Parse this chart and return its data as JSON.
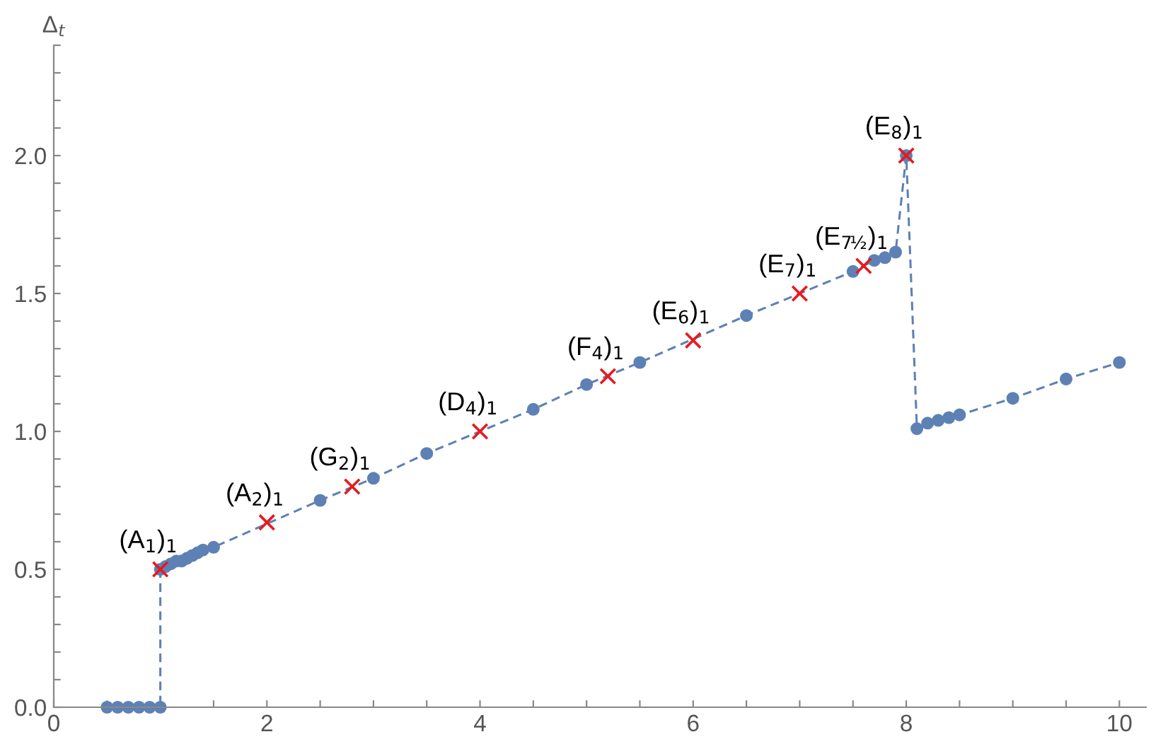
{
  "chart_data": {
    "type": "line",
    "ylabel": "Δ$_{t}$",
    "xlim": [
      0,
      10.25
    ],
    "ylim": [
      0,
      2.4
    ],
    "xticks": [
      0,
      {
        "value": 0.5,
        "label": null
      },
      {
        "value": 1,
        "label": null
      },
      {
        "value": 1.5,
        "label": null
      },
      2,
      {
        "value": 2.5,
        "label": null
      },
      {
        "value": 3,
        "label": null
      },
      {
        "value": 3.5,
        "label": null
      },
      4,
      {
        "value": 4.5,
        "label": null
      },
      {
        "value": 5,
        "label": null
      },
      {
        "value": 5.5,
        "label": null
      },
      6,
      {
        "value": 6.5,
        "label": null
      },
      {
        "value": 7,
        "label": null
      },
      {
        "value": 7.5,
        "label": null
      },
      8,
      {
        "value": 8.5,
        "label": null
      },
      {
        "value": 9,
        "label": null
      },
      {
        "value": 9.5,
        "label": null
      },
      10
    ],
    "yticks": [
      {
        "value": 0,
        "label": "0.0"
      },
      {
        "value": 0.1,
        "label": null
      },
      {
        "value": 0.2,
        "label": null
      },
      {
        "value": 0.3,
        "label": null
      },
      {
        "value": 0.4,
        "label": null
      },
      0.5,
      {
        "value": 0.6,
        "label": null
      },
      {
        "value": 0.7,
        "label": null
      },
      {
        "value": 0.8,
        "label": null
      },
      {
        "value": 0.9,
        "label": null
      },
      {
        "value": 1,
        "label": "1.0"
      },
      {
        "value": 1.1,
        "label": null
      },
      {
        "value": 1.2,
        "label": null
      },
      {
        "value": 1.3,
        "label": null
      },
      {
        "value": 1.4,
        "label": null
      },
      1.5,
      {
        "value": 1.6,
        "label": null
      },
      {
        "value": 1.7,
        "label": null
      },
      {
        "value": 1.8,
        "label": null
      },
      {
        "value": 1.9,
        "label": null
      },
      {
        "value": 2,
        "label": "2.0"
      },
      {
        "value": 2.1,
        "label": null
      },
      {
        "value": 2.2,
        "label": null
      },
      {
        "value": 2.3,
        "label": null
      },
      {
        "value": 2.4,
        "label": null
      }
    ],
    "grid": false,
    "series": [
      {
        "color": "#5e81b5",
        "marker": "circle",
        "line_style": "dashed",
        "x": [
          0.5,
          0.6,
          0.7,
          0.8,
          0.9,
          1.0,
          1.0,
          1.05,
          1.1,
          1.15,
          1.2,
          1.25,
          1.3,
          1.35,
          1.4,
          1.5,
          2.5,
          3,
          3.5,
          4.5,
          5,
          5.5,
          6.5,
          7.5,
          7.7,
          7.8,
          7.9,
          8,
          8.1,
          8.2,
          8.3,
          8.4,
          8.5,
          9,
          9.5,
          10
        ],
        "values": [
          0,
          0,
          0,
          0,
          0,
          0,
          0.5,
          0.51,
          0.52,
          0.53,
          0.53,
          0.54,
          0.55,
          0.56,
          0.57,
          0.58,
          0.75,
          0.83,
          0.92,
          1.08,
          1.17,
          1.25,
          1.42,
          1.58,
          1.62,
          1.63,
          1.65,
          2.0,
          1.01,
          1.03,
          1.04,
          1.05,
          1.06,
          1.12,
          1.19,
          1.25
        ]
      },
      {
        "type": "scatter",
        "color": "#e8191d",
        "marker": "cross",
        "x": [
          1,
          2,
          2.8,
          4,
          5.2,
          6,
          7,
          7.6,
          8
        ],
        "values": [
          0.5,
          0.67,
          0.8,
          1.0,
          1.2,
          1.33,
          1.5,
          1.6,
          2.0
        ]
      }
    ],
    "annotations": [
      {
        "text": "(A$_{1}$)$_{1}$",
        "x": 1,
        "y": 0.5
      },
      {
        "text": "(A$_{2}$)$_{1}$",
        "x": 2,
        "y": 0.67
      },
      {
        "text": "(G$_{2}$)$_{1}$",
        "x": 2.8,
        "y": 0.8
      },
      {
        "text": "(D$_{4}$)$_{1}$",
        "x": 4,
        "y": 1.0
      },
      {
        "text": "(F$_{4}$)$_{1}$",
        "x": 5.2,
        "y": 1.2
      },
      {
        "text": "(E$_{6}$)$_{1}$",
        "x": 6,
        "y": 1.33
      },
      {
        "text": "(E$_{7}$)$_{1}$",
        "x": 7,
        "y": 1.5
      },
      {
        "text": "(E$_{7½}$)$_{1}$",
        "x": 7.6,
        "y": 1.6
      },
      {
        "text": "(E$_{8}$)$_{1}$",
        "x": 8,
        "y": 2.0
      }
    ]
  }
}
